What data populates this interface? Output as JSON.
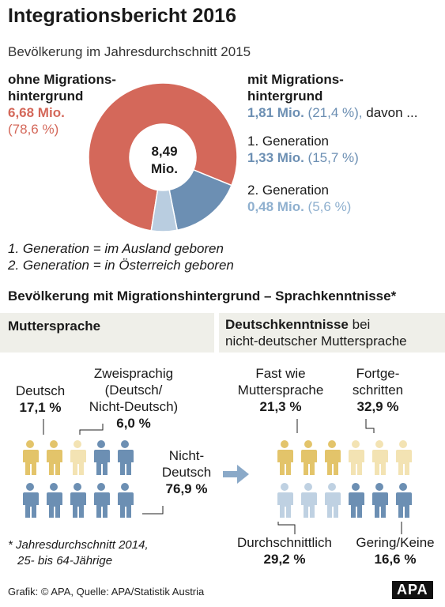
{
  "header": {
    "title": "Integrationsbericht 2016",
    "subtitle": "Bevölkerung im Jahresdurchschnitt 2015"
  },
  "donut": {
    "center_value": "8,49",
    "center_unit": "Mio.",
    "left_heading_1": "ohne Migrations-",
    "left_heading_2": "hintergrund",
    "left_value": "6,68 Mio.",
    "left_pct": "(78,6 %)",
    "right_heading_1": "mit Migrations-",
    "right_heading_2": "hintergrund",
    "right_value": "1,81 Mio.",
    "right_pct": "(21,4 %),",
    "right_suffix": " davon ...",
    "gen1_label": "1. Generation",
    "gen1_value": "1,33 Mio.",
    "gen1_pct": "(15,7 %)",
    "gen2_label": "2. Generation",
    "gen2_value": "0,48 Mio.",
    "gen2_pct": "(5,6 %)"
  },
  "notes": {
    "def1": "1. Generation = im Ausland geboren",
    "def2": "2. Generation = in Österreich geboren"
  },
  "section": {
    "title": "Bevölkerung mit Migrationshintergrund – Sprachkenntnisse*",
    "left_box": "Muttersprache",
    "right_box_bold": "Deutschkenntnisse",
    "right_box_rest": " bei",
    "right_box_line2": "nicht-deutscher Muttersprache"
  },
  "mother_tongue": {
    "deutsch_label": "Deutsch",
    "deutsch_value": "17,1 %",
    "zwei_label_1": "Zweisprachig",
    "zwei_label_2": "(Deutsch/",
    "zwei_label_3": "Nicht-Deutsch)",
    "zwei_value": "6,0 %",
    "nicht_label_1": "Nicht-",
    "nicht_label_2": "Deutsch",
    "nicht_value": "76,9 %"
  },
  "german_skills": {
    "fast_label_1": "Fast wie",
    "fast_label_2": "Muttersprache",
    "fast_value": "21,3 %",
    "fort_label_1": "Fortge-",
    "fort_label_2": "schritten",
    "fort_value": "32,9 %",
    "durch_label": "Durchschnittlich",
    "durch_value": "29,2 %",
    "gering_label": "Gering/Keine",
    "gering_value": "16,6 %"
  },
  "footnote": {
    "line1": "* Jahresdurchschnitt 2014,",
    "line2": "25- bis 64-Jährige"
  },
  "footer": {
    "credit": "Grafik: © APA, Quelle: APA/Statistik Austria",
    "logo": "APA"
  },
  "colors": {
    "red": "#d4685a",
    "blue": "#6c8fb3",
    "lightblue": "#b9cde0",
    "gold": "#e3c46a",
    "cream": "#f3e3b3",
    "paleblue": "#bfd1e2",
    "arrow": "#8aa9c8"
  },
  "chart_data": [
    {
      "type": "pie",
      "categories": [
        "ohne Migrationshintergrund",
        "1. Generation",
        "2. Generation"
      ],
      "values": [
        78.6,
        15.7,
        5.6
      ]
    },
    {
      "type": "pictogram",
      "title": "Muttersprache",
      "categories": [
        "Deutsch",
        "Zweisprachig (Deutsch/Nicht-Deutsch)",
        "Nicht-Deutsch"
      ],
      "values": [
        17.1,
        6.0,
        76.9
      ]
    },
    {
      "type": "pictogram",
      "title": "Deutschkenntnisse bei nicht-deutscher Muttersprache",
      "categories": [
        "Fast wie Muttersprache",
        "Fortgeschritten",
        "Durchschnittlich",
        "Gering/Keine"
      ],
      "values": [
        21.3,
        32.9,
        29.2,
        16.6
      ]
    }
  ]
}
